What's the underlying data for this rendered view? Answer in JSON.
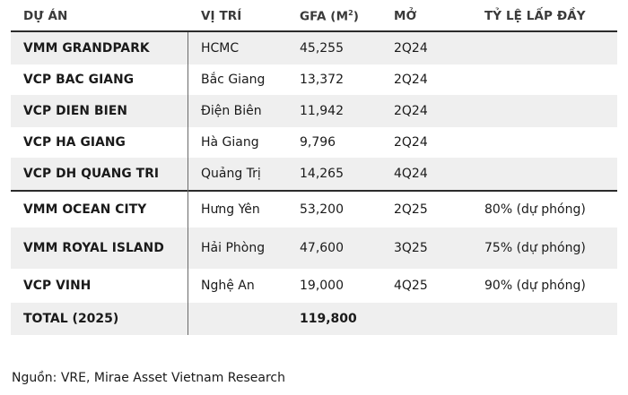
{
  "header": {
    "project": "DỰ ÁN",
    "location": "VỊ TRÍ",
    "gfa": "GFA (M",
    "gfa_sup": "2",
    "gfa_close": ")",
    "opening": "MỞ",
    "occupancy": "TỶ LỆ LẤP ĐẦY"
  },
  "rows": [
    {
      "project": "VMM GRANDPARK",
      "location": "HCMC",
      "gfa": "45,255",
      "opening": "2Q24",
      "occupancy": ""
    },
    {
      "project": "VCP BAC GIANG",
      "location": "Bắc Giang",
      "gfa": "13,372",
      "opening": "2Q24",
      "occupancy": ""
    },
    {
      "project": "VCP DIEN BIEN",
      "location": "Điện Biên",
      "gfa": "11,942",
      "opening": "2Q24",
      "occupancy": ""
    },
    {
      "project": "VCP HA GIANG",
      "location": "Hà Giang",
      "gfa": "9,796",
      "opening": "2Q24",
      "occupancy": ""
    },
    {
      "project": "VCP DH QUANG TRI",
      "location": "Quảng Trị",
      "gfa": "14,265",
      "opening": "4Q24",
      "occupancy": ""
    },
    {
      "project": "VMM OCEAN CITY",
      "location": "Hưng Yên",
      "gfa": "53,200",
      "opening": "2Q25",
      "occupancy": "80% (dự phóng)"
    },
    {
      "project": "VMM ROYAL ISLAND",
      "location": "Hải Phòng",
      "gfa": "47,600",
      "opening": "3Q25",
      "occupancy": "75% (dự phóng)"
    },
    {
      "project": "VCP VINH",
      "location": "Nghệ An",
      "gfa": "19,000",
      "opening": "4Q25",
      "occupancy": "90% (dự phóng)"
    }
  ],
  "total": {
    "label": "TOTAL (2025)",
    "gfa": "119,800"
  },
  "source": "Nguồn: VRE, Mirae Asset Vietnam Research"
}
